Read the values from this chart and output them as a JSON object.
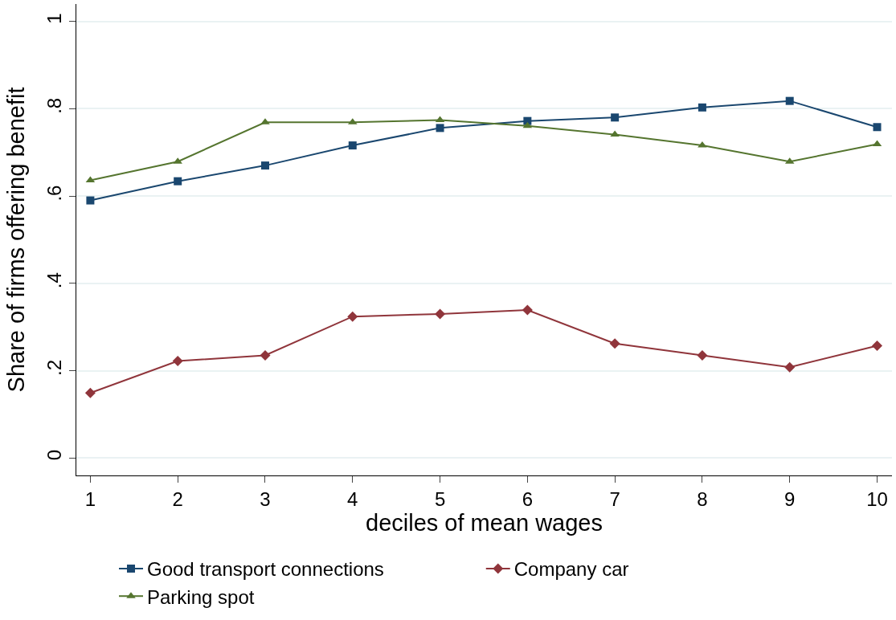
{
  "chart_data": {
    "type": "line",
    "xlabel": "deciles of mean wages",
    "ylabel": "Share of firms offering benefit",
    "x": [
      1,
      2,
      3,
      4,
      5,
      6,
      7,
      8,
      9,
      10
    ],
    "series": [
      {
        "name": "Good transport connections",
        "color": "#1a476f",
        "marker": "square",
        "values": [
          0.59,
          0.634,
          0.67,
          0.716,
          0.756,
          0.772,
          0.78,
          0.803,
          0.818,
          0.758
        ]
      },
      {
        "name": "Company car",
        "color": "#90353b",
        "marker": "diamond",
        "values": [
          0.149,
          0.222,
          0.235,
          0.324,
          0.33,
          0.339,
          0.262,
          0.235,
          0.208,
          0.257
        ]
      },
      {
        "name": "Parking spot",
        "color": "#55752f",
        "marker": "triangle",
        "values": [
          0.636,
          0.679,
          0.769,
          0.769,
          0.774,
          0.761,
          0.741,
          0.716,
          0.679,
          0.719
        ]
      }
    ],
    "xlim": [
      0.84,
      10.17
    ],
    "xticks": [
      1,
      2,
      3,
      4,
      5,
      6,
      7,
      8,
      9,
      10
    ],
    "ylim": [
      -0.04,
      1.04
    ],
    "yticks": [
      {
        "value": 0,
        "label": "0"
      },
      {
        "value": 0.2,
        "label": ".2"
      },
      {
        "value": 0.4,
        "label": ".4"
      },
      {
        "value": 0.6,
        "label": ".6"
      },
      {
        "value": 0.8,
        "label": ".8"
      },
      {
        "value": 1,
        "label": "1"
      }
    ],
    "grid": "y",
    "legend": "bottom",
    "line_style": "solid"
  }
}
